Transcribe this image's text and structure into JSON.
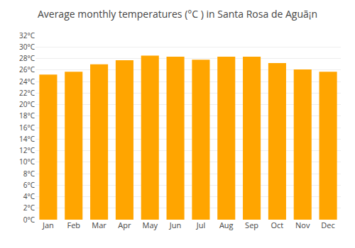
{
  "chart_data": {
    "type": "bar",
    "title": "Average monthly temperatures (°C ) in Santa Rosa de Aguã¡n",
    "categories": [
      "Jan",
      "Feb",
      "Mar",
      "Apr",
      "May",
      "Jun",
      "Jul",
      "Aug",
      "Sep",
      "Oct",
      "Nov",
      "Dec"
    ],
    "values": [
      25.2,
      25.7,
      27.0,
      27.7,
      28.5,
      28.3,
      27.8,
      28.3,
      28.3,
      27.2,
      26.1,
      25.7
    ],
    "color": "#FFA500",
    "ylim": [
      0,
      32
    ],
    "yticks": [
      {
        "value": 0,
        "label": "0°C"
      },
      {
        "value": 2,
        "label": "2°C"
      },
      {
        "value": 4,
        "label": "4°C"
      },
      {
        "value": 6,
        "label": "6°C"
      },
      {
        "value": 8,
        "label": "8°C"
      },
      {
        "value": 10,
        "label": "10°C"
      },
      {
        "value": 12,
        "label": "12°C"
      },
      {
        "value": 14,
        "label": "14°C"
      },
      {
        "value": 16,
        "label": "16°C"
      },
      {
        "value": 18,
        "label": "18°C"
      },
      {
        "value": 20,
        "label": "20°C"
      },
      {
        "value": 22,
        "label": "22°C"
      },
      {
        "value": 24,
        "label": "24°C"
      },
      {
        "value": 26,
        "label": "26°C"
      },
      {
        "value": 28,
        "label": "28°C"
      },
      {
        "value": 30,
        "label": "30°C"
      },
      {
        "value": 32,
        "label": "32°C"
      }
    ],
    "grid": true
  }
}
